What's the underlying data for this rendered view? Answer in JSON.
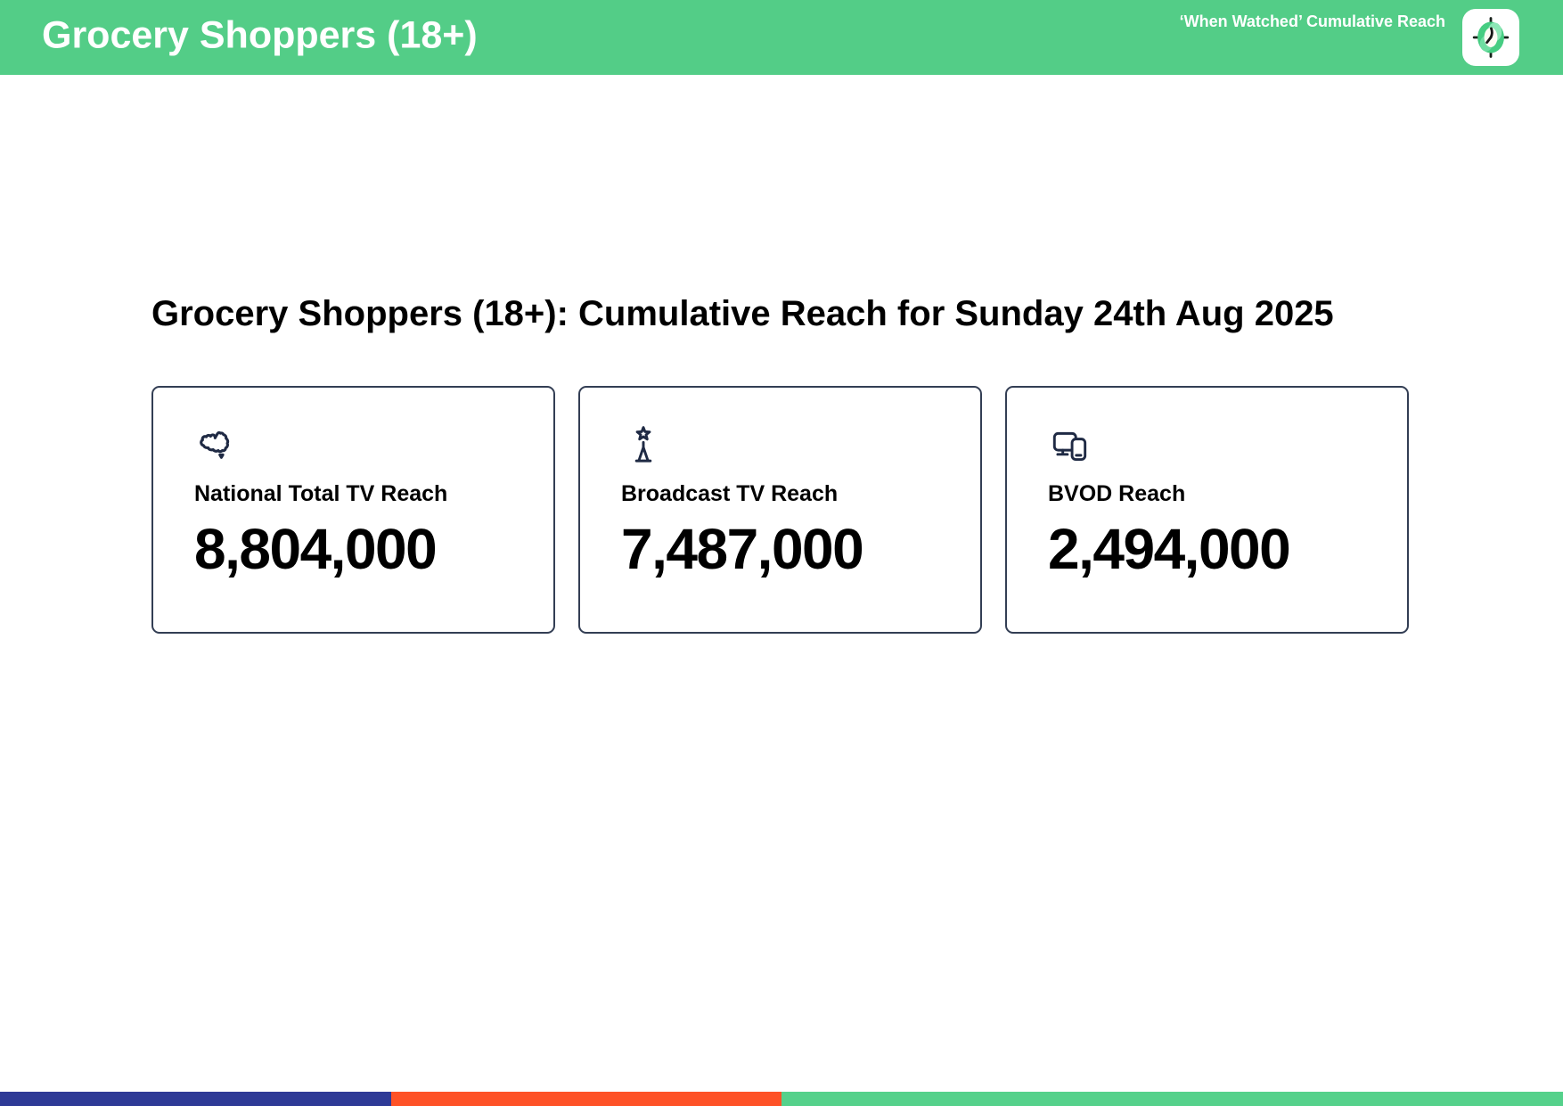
{
  "header": {
    "title": "Grocery Shoppers (18+)",
    "right_label": "‘When Watched’ Cumulative Reach",
    "bg_color": "#53cd87",
    "logo": "clock-logo"
  },
  "main": {
    "heading": "Grocery Shoppers (18+): Cumulative Reach for Sunday 24th Aug 2025",
    "icon_color": "#1f2a44",
    "cards": [
      {
        "icon": "australia-map-icon",
        "label": "National Total TV Reach",
        "value": "8,804,000"
      },
      {
        "icon": "broadcast-tower-icon",
        "label": "Broadcast TV Reach",
        "value": "7,487,000"
      },
      {
        "icon": "tv-and-phone-devices-icon",
        "label": "BVOD Reach",
        "value": "2,494,000"
      }
    ]
  },
  "footer": {
    "segments": [
      {
        "name": "blue",
        "color": "#2e3a96",
        "width_pct": 25
      },
      {
        "name": "orange",
        "color": "#fe5227",
        "width_pct": 25
      },
      {
        "name": "green",
        "color": "#55d18b",
        "width_pct": 50
      }
    ]
  }
}
